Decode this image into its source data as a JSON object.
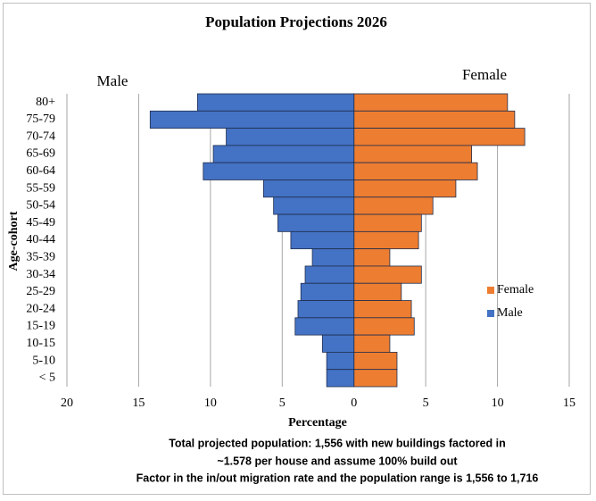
{
  "chart_data": {
    "type": "pyramid",
    "title": "Population Projections 2026",
    "side_labels": [
      "Male",
      "Female"
    ],
    "categories": [
      "80+",
      "75-79",
      "70-74",
      "65-69",
      "60-64",
      "55-59",
      "50-54",
      "45-49",
      "40-44",
      "35-39",
      "30-34",
      "25-29",
      "20-24",
      "15-19",
      "10-15",
      "5-10",
      "< 5"
    ],
    "series": [
      {
        "name": "Female",
        "color": "#ed7d31",
        "values": [
          10.7,
          11.2,
          11.9,
          8.2,
          8.6,
          7.1,
          5.5,
          4.7,
          4.5,
          2.5,
          4.7,
          3.3,
          4.0,
          4.2,
          2.5,
          3.0,
          3.0
        ]
      },
      {
        "name": "Male",
        "color": "#4472c4",
        "values": [
          -10.9,
          -14.2,
          -8.9,
          -9.8,
          -10.5,
          -6.3,
          -5.6,
          -5.3,
          -4.4,
          -2.9,
          -3.4,
          -3.7,
          -3.9,
          -4.1,
          -2.2,
          -1.9,
          -1.9
        ]
      }
    ],
    "xlim": [
      -20,
      15
    ],
    "xticks": [
      {
        "value": -20,
        "label": "20"
      },
      {
        "value": -15,
        "label": "15"
      },
      {
        "value": -10,
        "label": "10"
      },
      {
        "value": -5,
        "label": "5"
      },
      0,
      5,
      10,
      15
    ],
    "x_label": "Percentage",
    "y_label": "Age-cohort",
    "grid": true,
    "legend": "right",
    "annotations": [
      "Total projected population:  1,556 with new buildings factored in",
      "~1.578 per house and assume 100% build out",
      "Factor in the in/out migration rate and the population range is 1,556 to 1,716"
    ]
  }
}
